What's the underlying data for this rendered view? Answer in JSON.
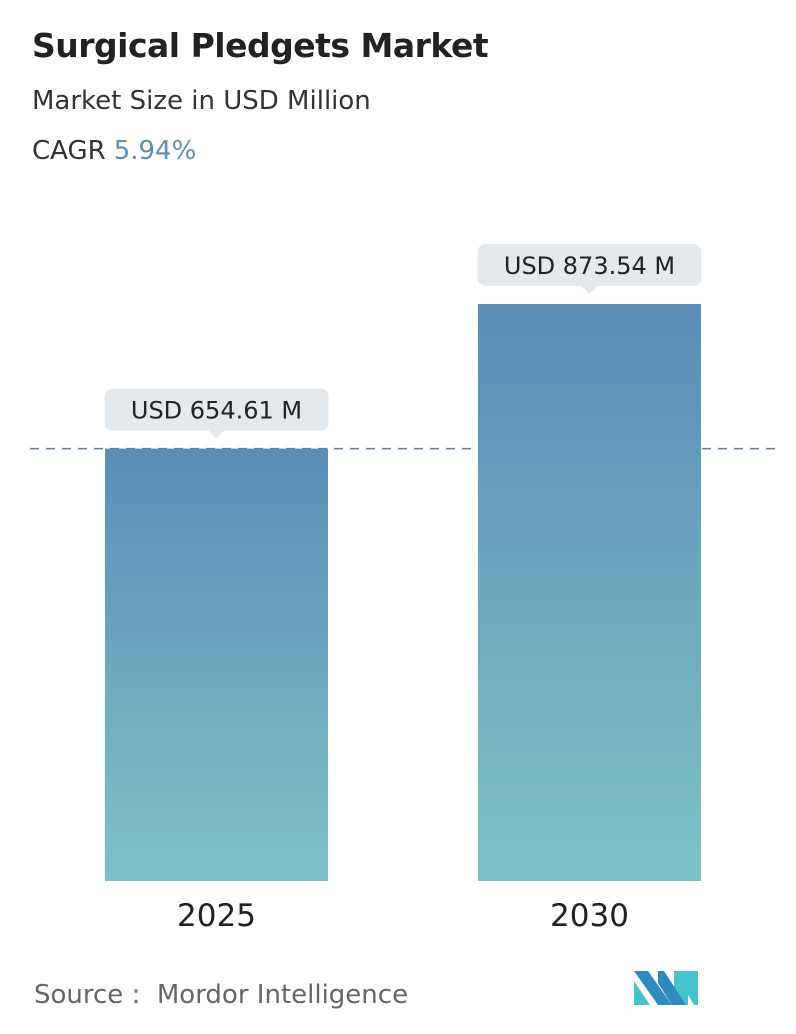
{
  "header": {
    "title": "Surgical Pledgets Market",
    "subtitle": "Market Size in USD Million",
    "cagr_label": "CAGR",
    "cagr_value": "5.94%"
  },
  "chart_data": {
    "type": "bar",
    "categories": [
      "2025",
      "2030"
    ],
    "values": [
      654.61,
      873.54
    ],
    "data_labels": [
      "USD 654.61 M",
      "USD 873.54 M"
    ],
    "ylim": [
      0,
      873.54
    ],
    "grid": false,
    "reference_line": {
      "value": 654.61,
      "style": "dashed"
    },
    "colors": {
      "bar_top": "#5b8db5",
      "bar_bottom": "#7fc1c8",
      "label_bg": "#e4e9ed",
      "reference_line": "#5b7d99"
    }
  },
  "footer": {
    "source_label": "Source :",
    "source_value": "Mordor Intelligence"
  },
  "logo": {
    "text": "MN",
    "colors": [
      "#2d8bc0",
      "#45c2cc"
    ]
  }
}
